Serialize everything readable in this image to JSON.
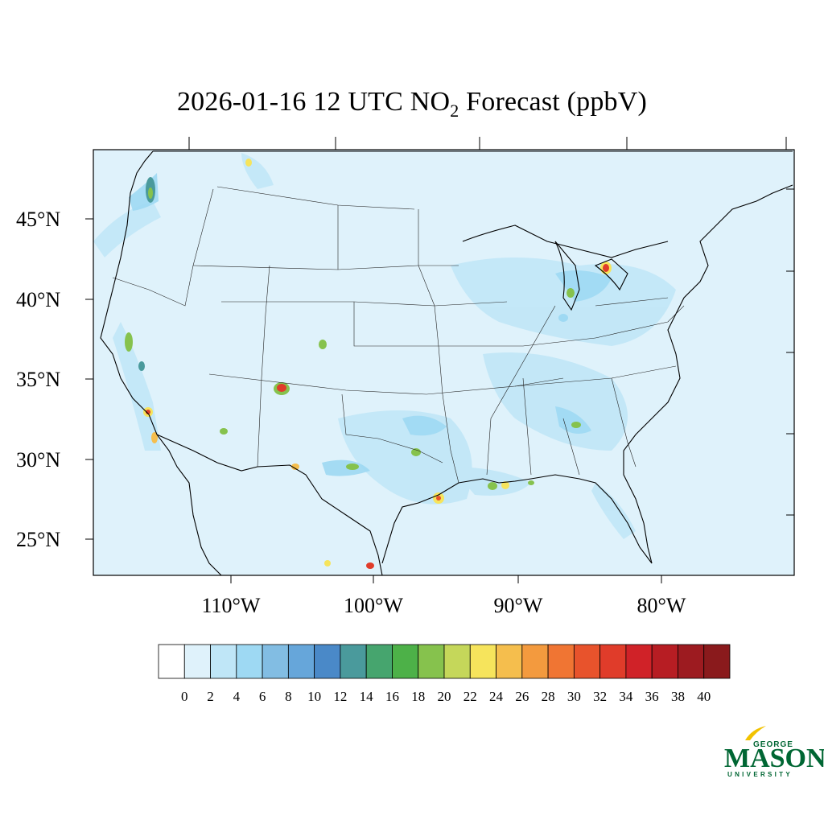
{
  "title": {
    "prefix": "2026-01-16 12 UTC NO",
    "sub": "2",
    "suffix": " Forecast (ppbV)"
  },
  "axes": {
    "lat_labels": [
      "45°N",
      "40°N",
      "35°N",
      "30°N",
      "25°N"
    ],
    "lon_labels": [
      "110°W",
      "100°W",
      "90°W",
      "80°W"
    ]
  },
  "colorbar": {
    "levels": [
      "0",
      "2",
      "4",
      "6",
      "8",
      "10",
      "12",
      "14",
      "16",
      "18",
      "20",
      "22",
      "24",
      "26",
      "28",
      "30",
      "32",
      "34",
      "36",
      "38",
      "40"
    ],
    "colors": [
      "#ffffff",
      "#dff2fb",
      "#bfe6f7",
      "#9ed9f3",
      "#82bde3",
      "#66a6da",
      "#4a89c8",
      "#4a9a9c",
      "#46a56e",
      "#4db148",
      "#86c24d",
      "#c5d75a",
      "#f6e45c",
      "#f5be4d",
      "#f39a3e",
      "#f07533",
      "#e8532c",
      "#e03c2a",
      "#d02228",
      "#b71d23",
      "#9d1b20",
      "#8a1a1c"
    ]
  },
  "map": {
    "background_color": "#dff2fb",
    "hotspot_colors": [
      "#bfe6f7",
      "#9ed9f3",
      "#82bde3",
      "#66a6da",
      "#4a9a9c",
      "#86c24d",
      "#f6e45c",
      "#e03c2a"
    ]
  },
  "logo": {
    "top": "GEORGE",
    "main": "MASON",
    "bottom": "UNIVERSITY"
  }
}
